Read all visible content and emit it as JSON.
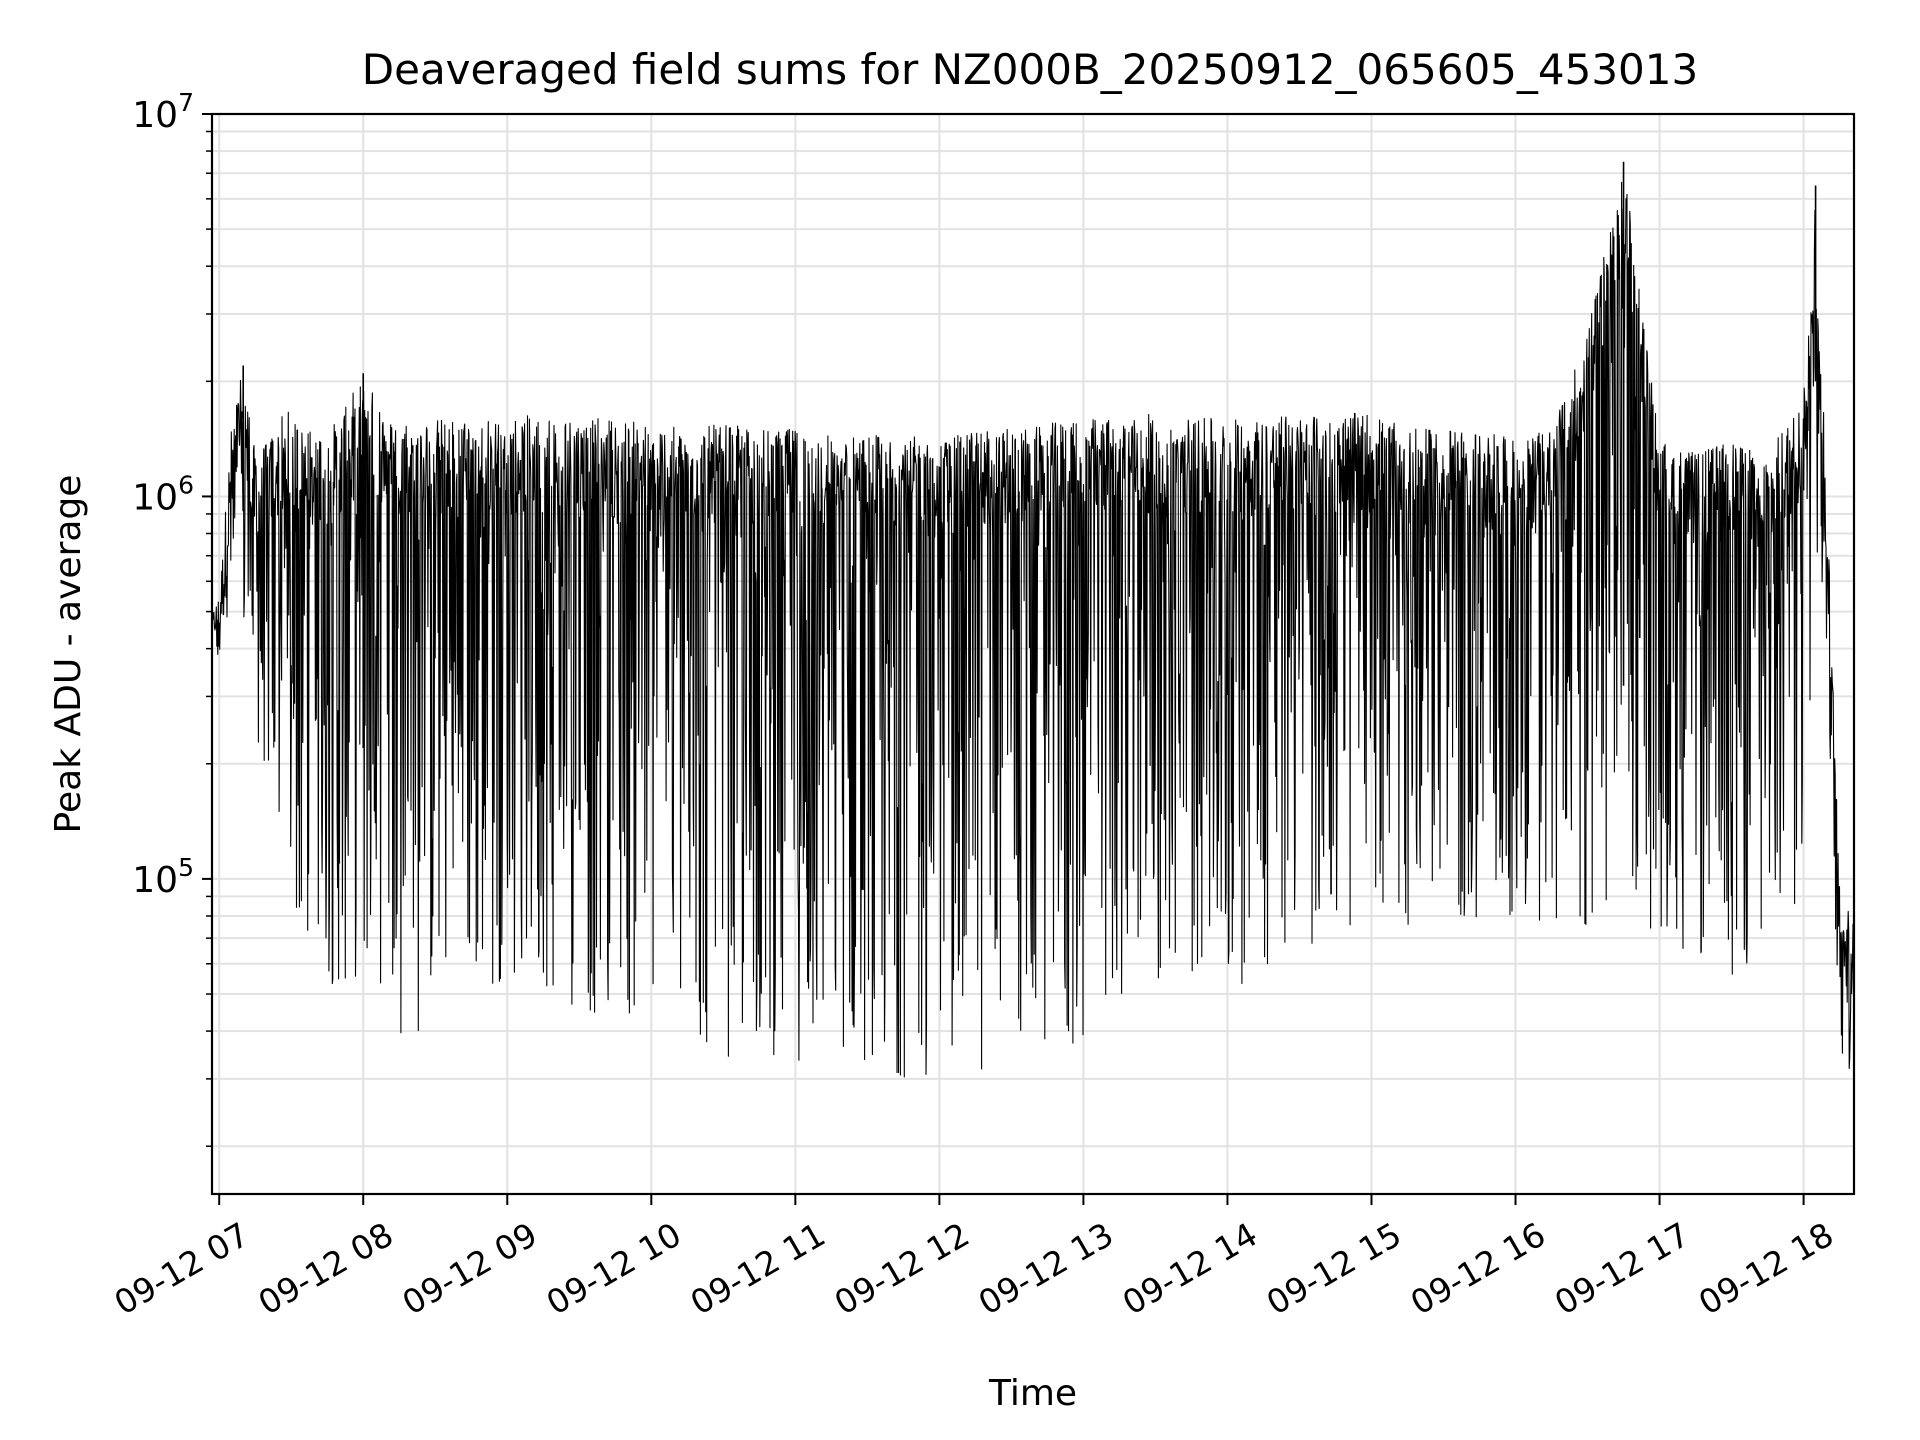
{
  "chart_data": {
    "type": "line",
    "title": "Deaveraged field sums for NZ000B_20250912_065605_453013",
    "xlabel": "Time",
    "ylabel": "Peak ADU - average",
    "yscale": "log",
    "ylim": [
      15000,
      10000000
    ],
    "xlim": [
      "2025-09-12 06:57",
      "2025-09-12 18:21"
    ],
    "grid": true,
    "line_color": "#000000",
    "x_ticks": [
      "09-12 07",
      "09-12 08",
      "09-12 09",
      "09-12 10",
      "09-12 11",
      "09-12 12",
      "09-12 13",
      "09-12 14",
      "09-12 15",
      "09-12 16",
      "09-12 17",
      "09-12 18"
    ],
    "y_ticks": [
      {
        "base": "10",
        "exp": "5",
        "value": 100000
      },
      {
        "base": "10",
        "exp": "6",
        "value": 1000000
      },
      {
        "base": "10",
        "exp": "7",
        "value": 10000000
      }
    ],
    "series": [
      {
        "x": [
          "2025-09-12 06:57",
          "2025-09-12 07:00",
          "2025-09-12 07:05",
          "2025-09-12 07:10",
          "2025-09-12 07:15",
          "2025-09-12 07:20",
          "2025-09-12 07:25",
          "2025-09-12 07:30",
          "2025-09-12 07:35",
          "2025-09-12 07:40",
          "2025-09-12 07:45",
          "2025-09-12 07:50",
          "2025-09-12 08:00",
          "2025-09-12 08:10",
          "2025-09-12 08:20",
          "2025-09-12 08:30",
          "2025-09-12 08:40",
          "2025-09-12 08:50",
          "2025-09-12 09:00",
          "2025-09-12 09:15",
          "2025-09-12 09:30",
          "2025-09-12 09:45",
          "2025-09-12 10:00",
          "2025-09-12 10:15",
          "2025-09-12 10:30",
          "2025-09-12 10:45",
          "2025-09-12 11:00",
          "2025-09-12 11:15",
          "2025-09-12 11:30",
          "2025-09-12 11:45",
          "2025-09-12 12:00",
          "2025-09-12 12:15",
          "2025-09-12 12:30",
          "2025-09-12 12:45",
          "2025-09-12 13:00",
          "2025-09-12 13:15",
          "2025-09-12 13:30",
          "2025-09-12 13:45",
          "2025-09-12 14:00",
          "2025-09-12 14:15",
          "2025-09-12 14:30",
          "2025-09-12 14:45",
          "2025-09-12 15:00",
          "2025-09-12 15:15",
          "2025-09-12 15:30",
          "2025-09-12 15:45",
          "2025-09-12 16:00",
          "2025-09-12 16:15",
          "2025-09-12 16:30",
          "2025-09-12 16:45",
          "2025-09-12 17:00",
          "2025-09-12 17:15",
          "2025-09-12 17:30",
          "2025-09-12 17:45",
          "2025-09-12 18:00",
          "2025-09-12 18:05",
          "2025-09-12 18:10",
          "2025-09-12 18:15",
          "2025-09-12 18:20"
        ],
        "upper": [
          500000,
          550000,
          1500000,
          2200000,
          1300000,
          1400000,
          1600000,
          1700000,
          1500000,
          1500000,
          1500000,
          1600000,
          2100000,
          1600000,
          1600000,
          1600000,
          1600000,
          1600000,
          1600000,
          1650000,
          1600000,
          1600000,
          1550000,
          1500000,
          1550000,
          1500000,
          1500000,
          1450000,
          1450000,
          1450000,
          1400000,
          1500000,
          1500000,
          1550000,
          1600000,
          1600000,
          1650000,
          1600000,
          1600000,
          1600000,
          1650000,
          1650000,
          1650000,
          1500000,
          1500000,
          1500000,
          1400000,
          1500000,
          2700000,
          7500000,
          1400000,
          1300000,
          1400000,
          1300000,
          1800000,
          6500000,
          900000,
          95000,
          90000
        ],
        "lower": [
          420000,
          450000,
          500000,
          400000,
          230000,
          180000,
          110000,
          80000,
          60000,
          50000,
          50000,
          50000,
          55000,
          50000,
          33000,
          50000,
          55000,
          50000,
          55000,
          50000,
          45000,
          40000,
          45000,
          35000,
          33000,
          35000,
          33000,
          35000,
          33000,
          30000,
          29000,
          30000,
          38000,
          30000,
          35000,
          50000,
          50000,
          55000,
          50000,
          55000,
          65000,
          70000,
          70000,
          75000,
          80000,
          70000,
          70000,
          65000,
          60000,
          80000,
          70000,
          60000,
          55000,
          60000,
          90000,
          500000,
          350000,
          33000,
          30000
        ]
      }
    ]
  }
}
